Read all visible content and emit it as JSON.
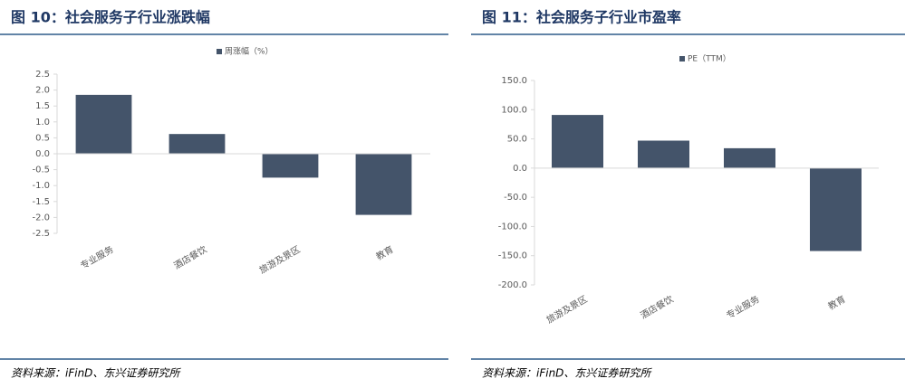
{
  "chart_data": [
    {
      "type": "bar",
      "title": "图 10：社会服务子行业涨跌幅",
      "source": "资料来源：iFinD、东兴证券研究所",
      "categories": [
        "专业服务",
        "酒店餐饮",
        "旅游及景区",
        "教育"
      ],
      "series": [
        {
          "name": "周涨幅（%）",
          "color": "#44546a",
          "values": [
            1.85,
            0.62,
            -0.75,
            -1.92
          ]
        }
      ],
      "ylim": [
        -2.5,
        2.5
      ],
      "yticks": [
        2.5,
        {
          "value": 2,
          "label": "2.0"
        },
        1.5,
        {
          "value": 1,
          "label": "1.0"
        },
        0.5,
        {
          "value": 0,
          "label": "0.0"
        },
        -0.5,
        {
          "value": -1,
          "label": "-1.0"
        },
        -1.5,
        {
          "value": -2,
          "label": "-2.0"
        },
        -2.5
      ],
      "legend": "top"
    },
    {
      "type": "bar",
      "title": "图 11：社会服务子行业市盈率",
      "source": "资料来源：iFinD、东兴证券研究所",
      "categories": [
        "旅游及景区",
        "酒店餐饮",
        "专业服务",
        "教育"
      ],
      "series": [
        {
          "name": "PE（TTM）",
          "color": "#44546a",
          "values": [
            91,
            47,
            34,
            -142
          ]
        }
      ],
      "ylim": [
        -200,
        150
      ],
      "yticks": [
        {
          "value": 150,
          "label": "150.0"
        },
        {
          "value": 100,
          "label": "100.0"
        },
        {
          "value": 50,
          "label": "50.0"
        },
        {
          "value": 0,
          "label": "0.0"
        },
        {
          "value": -50,
          "label": "-50.0"
        },
        {
          "value": -100,
          "label": "-100.0"
        },
        {
          "value": -150,
          "label": "-150.0"
        },
        {
          "value": -200,
          "label": "-200.0"
        }
      ],
      "legend": "top"
    }
  ]
}
